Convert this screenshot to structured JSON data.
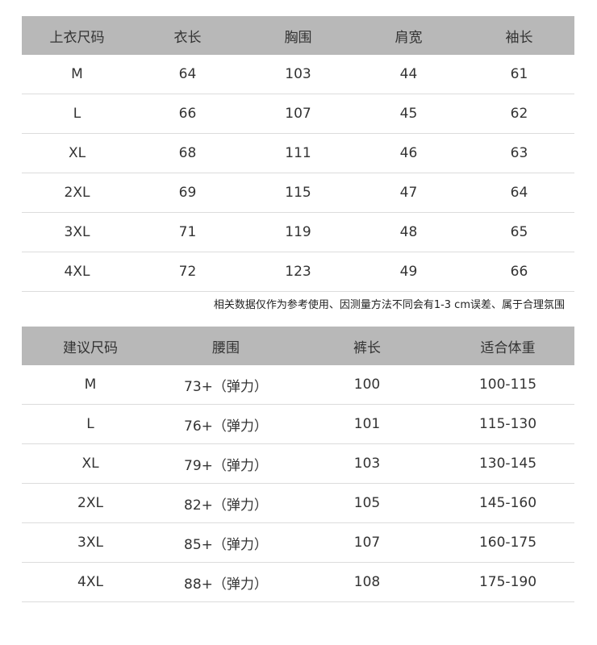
{
  "top_table": {
    "headers": [
      "上衣尺码",
      "衣长",
      "胸围",
      "肩宽",
      "袖长"
    ],
    "rows": [
      [
        "M",
        "64",
        "103",
        "44",
        "61"
      ],
      [
        "L",
        "66",
        "107",
        "45",
        "62"
      ],
      [
        "XL",
        "68",
        "111",
        "46",
        "63"
      ],
      [
        "2XL",
        "69",
        "115",
        "47",
        "64"
      ],
      [
        "3XL",
        "71",
        "119",
        "48",
        "65"
      ],
      [
        "4XL",
        "72",
        "123",
        "49",
        "66"
      ]
    ]
  },
  "note": "相关数据仅作为参考使用、因测量方法不同会有1-3 cm误差、属于合理氛围",
  "bottom_table": {
    "headers": [
      "建议尺码",
      "腰围",
      "裤长",
      "适合体重"
    ],
    "rows": [
      [
        "M",
        "73+（弹力）",
        "100",
        "100-115"
      ],
      [
        "L",
        "76+（弹力）",
        "101",
        "115-130"
      ],
      [
        "XL",
        "79+（弹力）",
        "103",
        "130-145"
      ],
      [
        "2XL",
        "82+（弹力）",
        "105",
        "145-160"
      ],
      [
        "3XL",
        "85+（弹力）",
        "107",
        "160-175"
      ],
      [
        "4XL",
        "88+（弹力）",
        "108",
        "175-190"
      ]
    ]
  },
  "colors": {
    "header_bg": "#b8b8b8",
    "text": "#333333",
    "divider": "#dcdcdc"
  }
}
